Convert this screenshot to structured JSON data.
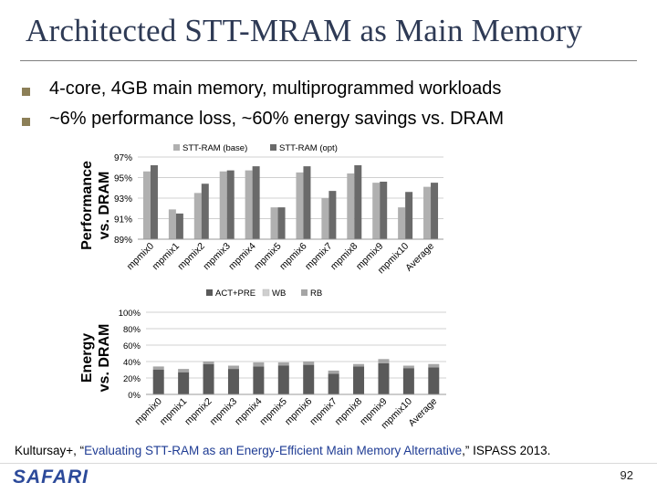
{
  "slide": {
    "title": "Architected STT-MRAM as Main Memory",
    "bullets": [
      "4-core, 4GB main memory, multiprogrammed workloads",
      "~6% performance loss, ~60% energy savings vs. DRAM"
    ],
    "citation": {
      "authors": "Kultursay+, “",
      "paper": "Evaluating STT-RAM as an Energy-Efficient Main Memory Alternative",
      "venue": ",” ISPASS 2013."
    },
    "logo": "SAFARI",
    "page_number": "92"
  },
  "colors": {
    "title": "#2e3a55",
    "bullet": "#8c7f57",
    "base": "#b0b0b0",
    "opt": "#6a6a6a",
    "act_pre": "#5a5a5a",
    "wb": "#cfcfcf",
    "rb": "#a5a5a5",
    "logo": "#2c4a9a"
  },
  "chart_data": [
    {
      "type": "bar",
      "ylabel_lines": [
        "Performance",
        "vs. DRAM"
      ],
      "categories": [
        "mpmix0",
        "mpmix1",
        "mpmix2",
        "mpmix3",
        "mpmix4",
        "mpmix5",
        "mpmix6",
        "mpmix7",
        "mpmix8",
        "mpmix9",
        "mpmix10",
        "Average"
      ],
      "series": [
        {
          "name": "STT-RAM (base)",
          "values": [
            95.6,
            91.9,
            93.5,
            95.6,
            95.7,
            92.1,
            95.5,
            93.0,
            95.4,
            94.5,
            92.1,
            94.1
          ]
        },
        {
          "name": "STT-RAM (opt)",
          "values": [
            96.2,
            91.5,
            94.4,
            95.7,
            96.1,
            92.1,
            96.1,
            93.7,
            96.2,
            94.6,
            93.6,
            94.5
          ]
        }
      ],
      "yticks": [
        "97%",
        "95%",
        "93%",
        "91%",
        "89%"
      ],
      "ylim": [
        89,
        97
      ],
      "legend_position": "top",
      "grid": true
    },
    {
      "type": "bar",
      "stacked": true,
      "ylabel_lines": [
        "Energy",
        "vs. DRAM"
      ],
      "categories": [
        "mpmix0",
        "mpmix1",
        "mpmix2",
        "mpmix3",
        "mpmix4",
        "mpmix5",
        "mpmix6",
        "mpmix7",
        "mpmix8",
        "mpmix9",
        "mpmix10",
        "Average"
      ],
      "series": [
        {
          "name": "ACT+PRE",
          "values": [
            30,
            27,
            37,
            31,
            34,
            35,
            36,
            25,
            34,
            38,
            32,
            33
          ]
        },
        {
          "name": "WB",
          "values": [
            0,
            0,
            0,
            0,
            0,
            0,
            0,
            0,
            0,
            0,
            0,
            0
          ]
        },
        {
          "name": "RB",
          "values": [
            4,
            4,
            3,
            4,
            5,
            4,
            4,
            4,
            3,
            5,
            3,
            4
          ]
        }
      ],
      "yticks": [
        "100%",
        "80%",
        "60%",
        "40%",
        "20%",
        "0%"
      ],
      "ylim": [
        0,
        100
      ],
      "legend_position": "top",
      "grid": true
    }
  ]
}
